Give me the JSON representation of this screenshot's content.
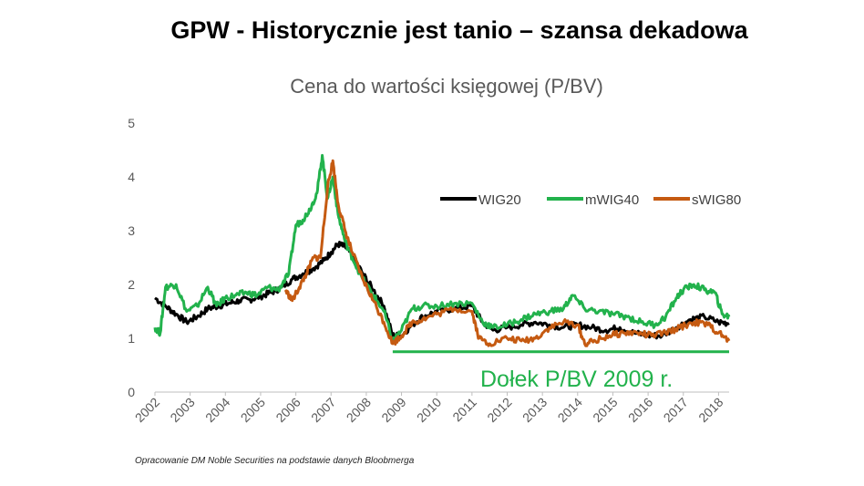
{
  "slide": {
    "title": "GPW - Historycznie jest tanio – szansa dekadowa",
    "source_note": "Opracowanie DM Noble Securities  na podstawie danych Bloobmerga"
  },
  "chart_data": {
    "type": "line",
    "title": "Cena do wartości księgowej (P/BV)",
    "xlabel": "",
    "ylabel": "",
    "xlim": [
      2002.0,
      2018.3
    ],
    "ylim": [
      0,
      5
    ],
    "x_ticks": [
      "2002",
      "2003",
      "2004",
      "2005",
      "2006",
      "2007",
      "2008",
      "2009",
      "2010",
      "2011",
      "2012",
      "2013",
      "2014",
      "2015",
      "2016",
      "2017",
      "2018"
    ],
    "y_ticks": [
      "0",
      "1",
      "2",
      "3",
      "4",
      "5"
    ],
    "grid": false,
    "legend_position": "top-right",
    "series": [
      {
        "name": "WIG20",
        "color": "#000000",
        "x": [
          2002.0,
          2002.3,
          2002.6,
          2002.9,
          2003.2,
          2003.5,
          2003.8,
          2004.1,
          2004.4,
          2004.7,
          2005.0,
          2005.3,
          2005.6,
          2005.9,
          2006.2,
          2006.5,
          2006.8,
          2007.0,
          2007.2,
          2007.4,
          2007.6,
          2007.9,
          2008.2,
          2008.5,
          2008.75,
          2009.0,
          2009.3,
          2009.6,
          2010.0,
          2010.5,
          2011.0,
          2011.3,
          2011.6,
          2012.0,
          2012.4,
          2012.8,
          2013.2,
          2013.6,
          2014.0,
          2014.4,
          2014.8,
          2015.2,
          2015.6,
          2016.0,
          2016.4,
          2016.8,
          2017.2,
          2017.6,
          2018.0,
          2018.3
        ],
        "y": [
          1.75,
          1.6,
          1.45,
          1.3,
          1.4,
          1.55,
          1.6,
          1.65,
          1.7,
          1.72,
          1.78,
          1.85,
          1.95,
          2.1,
          2.2,
          2.3,
          2.45,
          2.6,
          2.75,
          2.7,
          2.55,
          2.2,
          1.9,
          1.6,
          1.05,
          1.05,
          1.25,
          1.4,
          1.5,
          1.55,
          1.6,
          1.3,
          1.15,
          1.2,
          1.25,
          1.3,
          1.25,
          1.2,
          1.25,
          1.2,
          1.15,
          1.2,
          1.1,
          1.05,
          1.05,
          1.2,
          1.35,
          1.4,
          1.3,
          1.28
        ]
      },
      {
        "name": "mWIG40",
        "color": "#22b24c",
        "x": [
          2002.0,
          2002.15,
          2002.3,
          2002.6,
          2002.9,
          2003.2,
          2003.5,
          2003.75,
          2004.0,
          2004.3,
          2004.6,
          2004.9,
          2005.2,
          2005.5,
          2005.8,
          2006.0,
          2006.2,
          2006.4,
          2006.6,
          2006.75,
          2006.9,
          2007.05,
          2007.2,
          2007.4,
          2007.6,
          2007.9,
          2008.2,
          2008.5,
          2008.75,
          2009.0,
          2009.3,
          2009.6,
          2010.0,
          2010.5,
          2011.0,
          2011.3,
          2011.6,
          2012.0,
          2012.4,
          2012.8,
          2013.2,
          2013.6,
          2013.85,
          2014.2,
          2014.6,
          2015.0,
          2015.4,
          2015.8,
          2016.2,
          2016.5,
          2016.8,
          2017.0,
          2017.3,
          2017.6,
          2017.9,
          2018.1,
          2018.3
        ],
        "y": [
          1.2,
          1.1,
          1.95,
          2.0,
          1.5,
          1.6,
          1.95,
          1.6,
          1.75,
          1.8,
          1.85,
          1.8,
          1.95,
          1.9,
          2.2,
          3.1,
          3.2,
          3.4,
          3.7,
          4.4,
          3.6,
          4.0,
          3.3,
          2.8,
          2.5,
          2.1,
          1.8,
          1.5,
          0.95,
          1.15,
          1.55,
          1.6,
          1.6,
          1.65,
          1.65,
          1.3,
          1.2,
          1.25,
          1.35,
          1.45,
          1.5,
          1.55,
          1.8,
          1.55,
          1.5,
          1.45,
          1.4,
          1.3,
          1.25,
          1.4,
          1.75,
          1.9,
          2.0,
          1.9,
          1.85,
          1.45,
          1.4
        ]
      },
      {
        "name": "sWIG80",
        "color": "#c55a11",
        "x": [
          2005.7,
          2005.9,
          2006.1,
          2006.3,
          2006.5,
          2006.7,
          2006.9,
          2007.05,
          2007.2,
          2007.4,
          2007.6,
          2007.9,
          2008.2,
          2008.5,
          2008.75,
          2009.0,
          2009.3,
          2009.6,
          2010.0,
          2010.5,
          2011.0,
          2011.2,
          2011.5,
          2012.0,
          2012.4,
          2012.8,
          2013.2,
          2013.6,
          2014.0,
          2014.2,
          2014.5,
          2014.9,
          2015.3,
          2015.7,
          2016.1,
          2016.5,
          2016.9,
          2017.3,
          2017.7,
          2018.0,
          2018.3
        ],
        "y": [
          1.9,
          1.7,
          1.95,
          2.2,
          2.5,
          2.5,
          3.8,
          4.3,
          3.5,
          3.0,
          2.6,
          2.1,
          1.7,
          1.3,
          0.9,
          1.05,
          1.3,
          1.35,
          1.45,
          1.55,
          1.5,
          1.0,
          0.9,
          1.0,
          0.95,
          1.0,
          1.2,
          1.3,
          1.25,
          0.9,
          0.95,
          1.05,
          1.1,
          1.1,
          1.05,
          1.1,
          1.2,
          1.3,
          1.25,
          1.1,
          0.95
        ]
      }
    ],
    "reference_line": {
      "y": 0.75,
      "x_start": 2008.75,
      "x_end": 2018.3,
      "color": "#22b24c"
    },
    "annotation": {
      "text": "Dołek P/BV 2009 r.",
      "color": "#22b24c"
    }
  }
}
